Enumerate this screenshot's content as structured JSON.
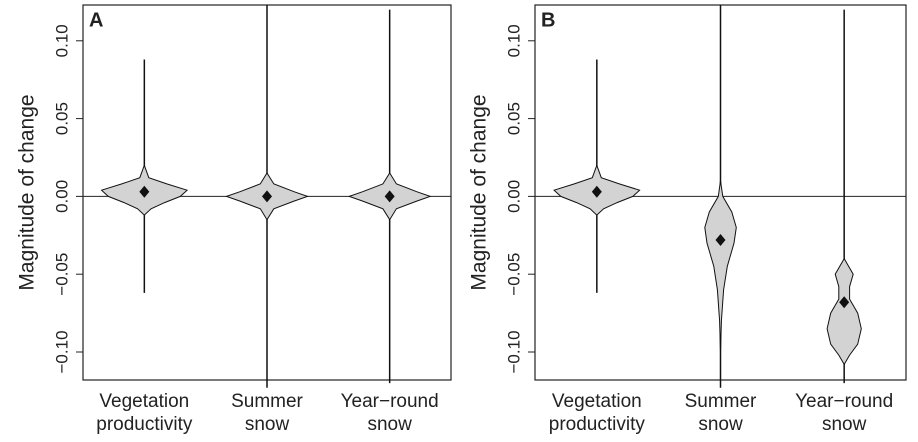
{
  "chart_data": [
    {
      "type": "violin",
      "panel_label": "A",
      "ylabel": "Magnitude of change",
      "ylim": [
        -0.118,
        0.123
      ],
      "yticks": [
        {
          "value": 0.1,
          "label": "0.10"
        },
        {
          "value": 0.05,
          "label": "0.05"
        },
        {
          "value": 0,
          "label": "0.00"
        },
        {
          "value": -0.05,
          "label": "−0.05"
        },
        {
          "value": -0.1,
          "label": "−0.10"
        }
      ],
      "hline": 0,
      "color": "#d3d3d3",
      "categories": [
        [
          "Vegetation",
          "productivity"
        ],
        [
          "Summer",
          "snow"
        ],
        [
          "Year−round",
          "snow"
        ]
      ],
      "violins": [
        {
          "min": -0.062,
          "max": 0.088,
          "mean": 0.003,
          "profile": [
            [
              0.02,
              0
            ],
            [
              0.012,
              0.1
            ],
            [
              0.008,
              0.5
            ],
            [
              0.004,
              0.95
            ],
            [
              0.0,
              0.8
            ],
            [
              -0.004,
              0.45
            ],
            [
              -0.008,
              0.15
            ],
            [
              -0.012,
              0
            ]
          ]
        },
        {
          "min": -0.123,
          "max": 0.123,
          "mean": 0.0,
          "profile": [
            [
              0.015,
              0
            ],
            [
              0.008,
              0.15
            ],
            [
              0.003,
              0.6
            ],
            [
              0.0,
              0.9
            ],
            [
              -0.003,
              0.6
            ],
            [
              -0.008,
              0.15
            ],
            [
              -0.015,
              0
            ]
          ]
        },
        {
          "min": -0.12,
          "max": 0.12,
          "mean": 0.0,
          "profile": [
            [
              0.015,
              0
            ],
            [
              0.008,
              0.15
            ],
            [
              0.003,
              0.6
            ],
            [
              0.0,
              0.9
            ],
            [
              -0.003,
              0.6
            ],
            [
              -0.008,
              0.15
            ],
            [
              -0.015,
              0
            ]
          ]
        }
      ]
    },
    {
      "type": "violin",
      "panel_label": "B",
      "ylabel": "Magnitude of change",
      "ylim": [
        -0.118,
        0.123
      ],
      "yticks": [
        {
          "value": 0.1,
          "label": "0.10"
        },
        {
          "value": 0.05,
          "label": "0.05"
        },
        {
          "value": 0,
          "label": "0.00"
        },
        {
          "value": -0.05,
          "label": "−0.05"
        },
        {
          "value": -0.1,
          "label": "−0.10"
        }
      ],
      "hline": 0,
      "color": "#d3d3d3",
      "categories": [
        [
          "Vegetation",
          "productivity"
        ],
        [
          "Summer",
          "snow"
        ],
        [
          "Year−round",
          "snow"
        ]
      ],
      "violins": [
        {
          "min": -0.062,
          "max": 0.088,
          "mean": 0.003,
          "profile": [
            [
              0.02,
              0
            ],
            [
              0.012,
              0.1
            ],
            [
              0.008,
              0.5
            ],
            [
              0.004,
              0.95
            ],
            [
              0.0,
              0.8
            ],
            [
              -0.004,
              0.45
            ],
            [
              -0.008,
              0.15
            ],
            [
              -0.012,
              0
            ]
          ]
        },
        {
          "min": -0.123,
          "max": 0.123,
          "mean": -0.028,
          "profile": [
            [
              0.01,
              0
            ],
            [
              0.0,
              0.05
            ],
            [
              -0.01,
              0.25
            ],
            [
              -0.02,
              0.35
            ],
            [
              -0.03,
              0.3
            ],
            [
              -0.045,
              0.15
            ],
            [
              -0.06,
              0.07
            ],
            [
              -0.08,
              0.02
            ],
            [
              -0.1,
              0
            ]
          ]
        },
        {
          "min": -0.12,
          "max": 0.12,
          "mean": -0.068,
          "profile": [
            [
              -0.04,
              0
            ],
            [
              -0.05,
              0.2
            ],
            [
              -0.058,
              0.12
            ],
            [
              -0.066,
              0.12
            ],
            [
              -0.075,
              0.3
            ],
            [
              -0.085,
              0.38
            ],
            [
              -0.095,
              0.3
            ],
            [
              -0.102,
              0.12
            ],
            [
              -0.108,
              0
            ]
          ]
        }
      ]
    }
  ]
}
